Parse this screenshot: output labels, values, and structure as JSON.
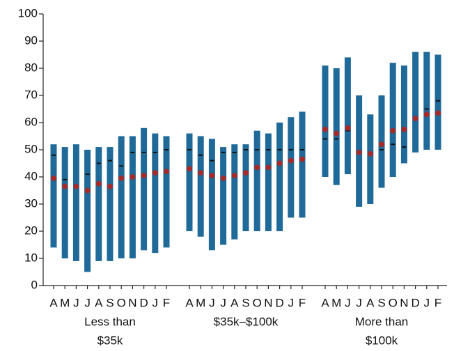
{
  "chart_data": {
    "type": "range",
    "bar_color": "#1f6a99",
    "median_color": "#111111",
    "mean_color": "#a62a2a",
    "ylim": [
      0,
      100
    ],
    "yticks": [
      0,
      10,
      20,
      30,
      40,
      50,
      60,
      70,
      80,
      90,
      100
    ],
    "groups": [
      {
        "name": [
          "Less than",
          "$35k"
        ],
        "categories": [
          "A",
          "M",
          "J",
          "J",
          "A",
          "S",
          "O",
          "N",
          "D",
          "J",
          "F"
        ],
        "low": [
          14,
          10,
          9,
          5,
          9,
          9,
          10,
          10,
          13,
          12,
          14
        ],
        "high": [
          52,
          51,
          52,
          50,
          51,
          51,
          55,
          55,
          58,
          56,
          55
        ],
        "median": [
          48,
          39,
          36,
          41,
          45,
          46,
          44,
          49,
          49,
          49,
          50
        ],
        "mean": [
          39.5,
          36.5,
          36.5,
          35,
          37.5,
          36.5,
          39.5,
          40,
          40.5,
          41.5,
          42
        ]
      },
      {
        "name": [
          "$35k–$100k"
        ],
        "categories": [
          "A",
          "M",
          "J",
          "J",
          "A",
          "S",
          "O",
          "N",
          "D",
          "J",
          "F"
        ],
        "low": [
          20,
          18,
          13,
          15,
          17,
          20,
          20,
          20,
          20,
          25,
          25
        ],
        "high": [
          56,
          55,
          54,
          51,
          52,
          52,
          57,
          56,
          60,
          62,
          64
        ],
        "median": [
          50,
          48,
          46,
          49,
          49,
          50,
          50,
          50,
          50,
          50,
          50
        ],
        "mean": [
          43,
          41.5,
          40.5,
          39.5,
          40.5,
          41.5,
          43.5,
          43.5,
          45,
          46,
          46.5
        ]
      },
      {
        "name": [
          "More than",
          "$100k"
        ],
        "categories": [
          "A",
          "M",
          "J",
          "J",
          "A",
          "S",
          "O",
          "N",
          "D",
          "J",
          "F"
        ],
        "low": [
          40,
          37,
          41,
          29,
          30,
          36,
          40,
          45,
          49,
          50,
          50
        ],
        "high": [
          81,
          80,
          84,
          70,
          63,
          70,
          82,
          81,
          86,
          86,
          85
        ],
        "median": [
          54,
          54,
          57,
          49,
          49,
          50,
          52,
          51,
          62,
          65,
          68
        ],
        "mean": [
          57.5,
          56,
          58,
          49,
          48.5,
          52,
          57,
          57.5,
          61.5,
          63,
          63.5
        ]
      }
    ]
  }
}
